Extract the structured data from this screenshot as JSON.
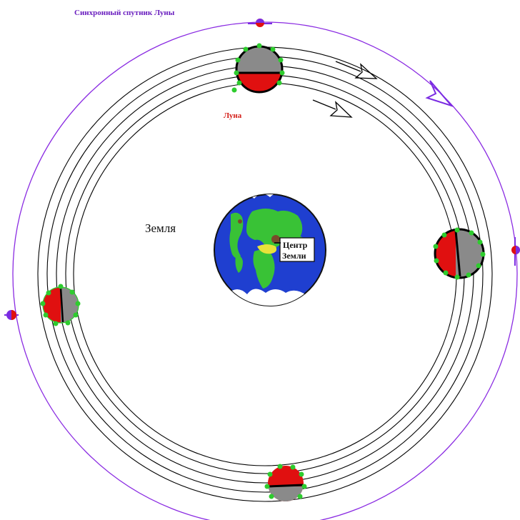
{
  "labels": {
    "satellite": "Синхронный спутник Луны",
    "moon": "Луна",
    "earth": "Земля",
    "earth_center_line1": "Центр",
    "earth_center_line2": "Земли"
  },
  "colors": {
    "outer_orbit": "#8a2be2",
    "orbit_lines": "#000000",
    "ocean": "#1f3fd0",
    "land": "#39c236",
    "desert": "#e8e23a",
    "clouds": "#ffffff",
    "moon_red": "#e01010",
    "moon_gray": "#8a8a8a",
    "marker_green": "#2ecc2e",
    "satellite_red": "#e01010",
    "satellite_purple": "#7a2be2"
  },
  "icons": [
    "direction-arrow-icon",
    "satellite-marker-icon",
    "moon-phase-icon",
    "earth-globe-icon"
  ]
}
